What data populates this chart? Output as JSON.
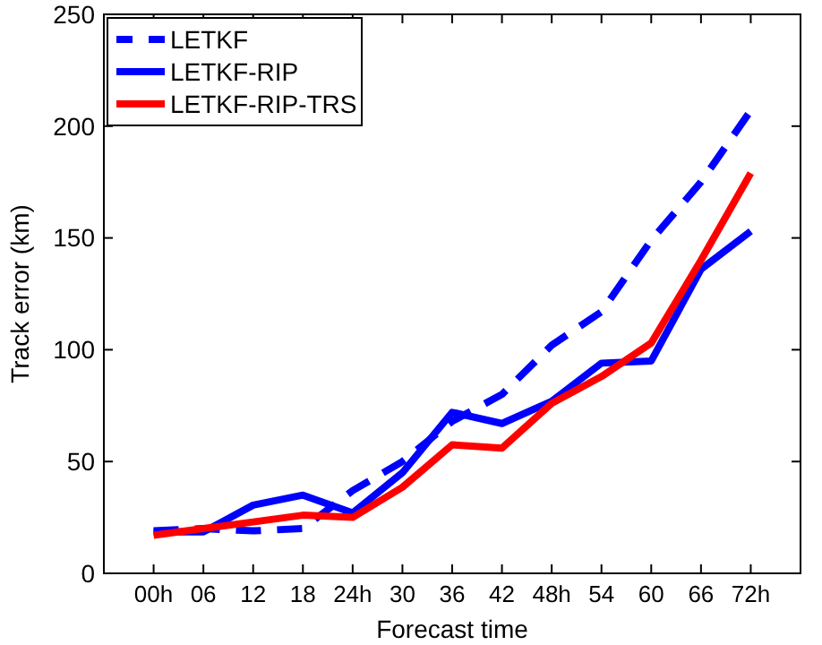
{
  "chart_data": {
    "type": "line",
    "xlabel": "Forecast time",
    "ylabel": "Track error (km)",
    "categories": [
      "00h",
      "06",
      "12",
      "18",
      "24h",
      "30",
      "36",
      "42",
      "48h",
      "54",
      "60",
      "66",
      "72h"
    ],
    "series": [
      {
        "name": "LETKF",
        "color": "#0000ff",
        "line_style": "dashed",
        "values": [
          19,
          20,
          19,
          20,
          37,
          50,
          68,
          80,
          102,
          117,
          149,
          175,
          207
        ]
      },
      {
        "name": "LETKF-RIP",
        "color": "#0000ff",
        "line_style": "solid",
        "values": [
          18.5,
          18.5,
          30.5,
          35,
          27,
          45,
          72,
          67,
          77,
          94,
          95,
          136,
          153
        ]
      },
      {
        "name": "LETKF-RIP-TRS",
        "color": "#ff0000",
        "line_style": "solid",
        "values": [
          17,
          20,
          23,
          26,
          25,
          38.5,
          57.5,
          56,
          76,
          88,
          103,
          140,
          179
        ]
      }
    ],
    "ylim": [
      0,
      250
    ],
    "yticks": [
      0,
      50,
      100,
      150,
      200,
      250
    ],
    "grid": false,
    "legend": "top left"
  }
}
